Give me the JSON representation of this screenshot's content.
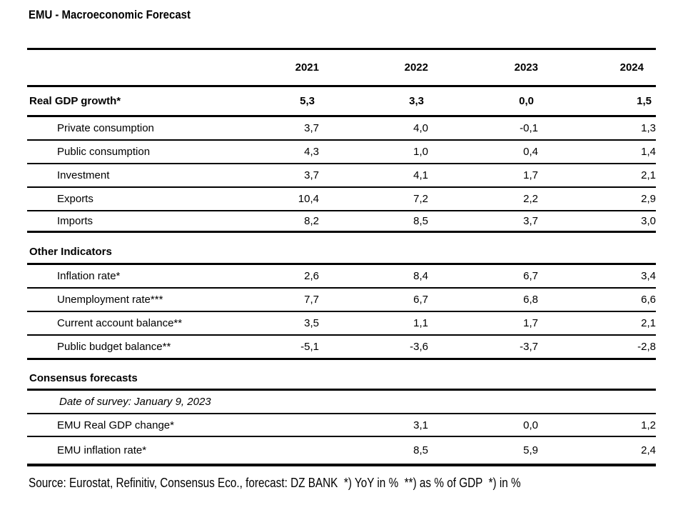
{
  "title": "EMU - Macroeconomic Forecast",
  "table": {
    "col_headers": [
      "2021",
      "2022",
      "2023",
      "2024"
    ],
    "gdp": {
      "summary": {
        "label": "Real GDP growth*",
        "values": [
          "5,3",
          "3,3",
          "0,0",
          "1,5"
        ]
      },
      "rows": [
        {
          "label": "Private consumption",
          "values": [
            "3,7",
            "4,0",
            "-0,1",
            "1,3"
          ]
        },
        {
          "label": "Public consumption",
          "values": [
            "4,3",
            "1,0",
            "0,4",
            "1,4"
          ]
        },
        {
          "label": "Investment",
          "values": [
            "3,7",
            "4,1",
            "1,7",
            "2,1"
          ]
        },
        {
          "label": "Exports",
          "values": [
            "10,4",
            "7,2",
            "2,2",
            "2,9"
          ]
        },
        {
          "label": "Imports",
          "values": [
            "8,2",
            "8,5",
            "3,7",
            "3,0"
          ]
        }
      ]
    },
    "other_indicators": {
      "heading": "Other Indicators",
      "rows": [
        {
          "label": "Inflation rate*",
          "values": [
            "2,6",
            "8,4",
            "6,7",
            "3,4"
          ]
        },
        {
          "label": "Unemployment rate***",
          "values": [
            "7,7",
            "6,7",
            "6,8",
            "6,6"
          ]
        },
        {
          "label": "Current account balance**",
          "values": [
            "3,5",
            "1,1",
            "1,7",
            "2,1"
          ]
        },
        {
          "label": "Public budget balance**",
          "values": [
            "-5,1",
            "-3,6",
            "-3,7",
            "-2,8"
          ]
        }
      ]
    },
    "consensus": {
      "heading": "Consensus forecasts",
      "survey_note": "Date of survey: January 9, 2023",
      "rows": [
        {
          "label": "EMU Real GDP change*",
          "values": [
            "",
            "3,1",
            "0,0",
            "1,2"
          ]
        },
        {
          "label": "EMU inflation rate*",
          "values": [
            "",
            "8,5",
            "5,9",
            "2,4"
          ]
        }
      ]
    }
  },
  "footer": {
    "source_line": "Source: Eurostat, Refinitiv, Consensus Eco., forecast: DZ BANK  *) YoY in %  **) as % of GDP  *) in %"
  }
}
